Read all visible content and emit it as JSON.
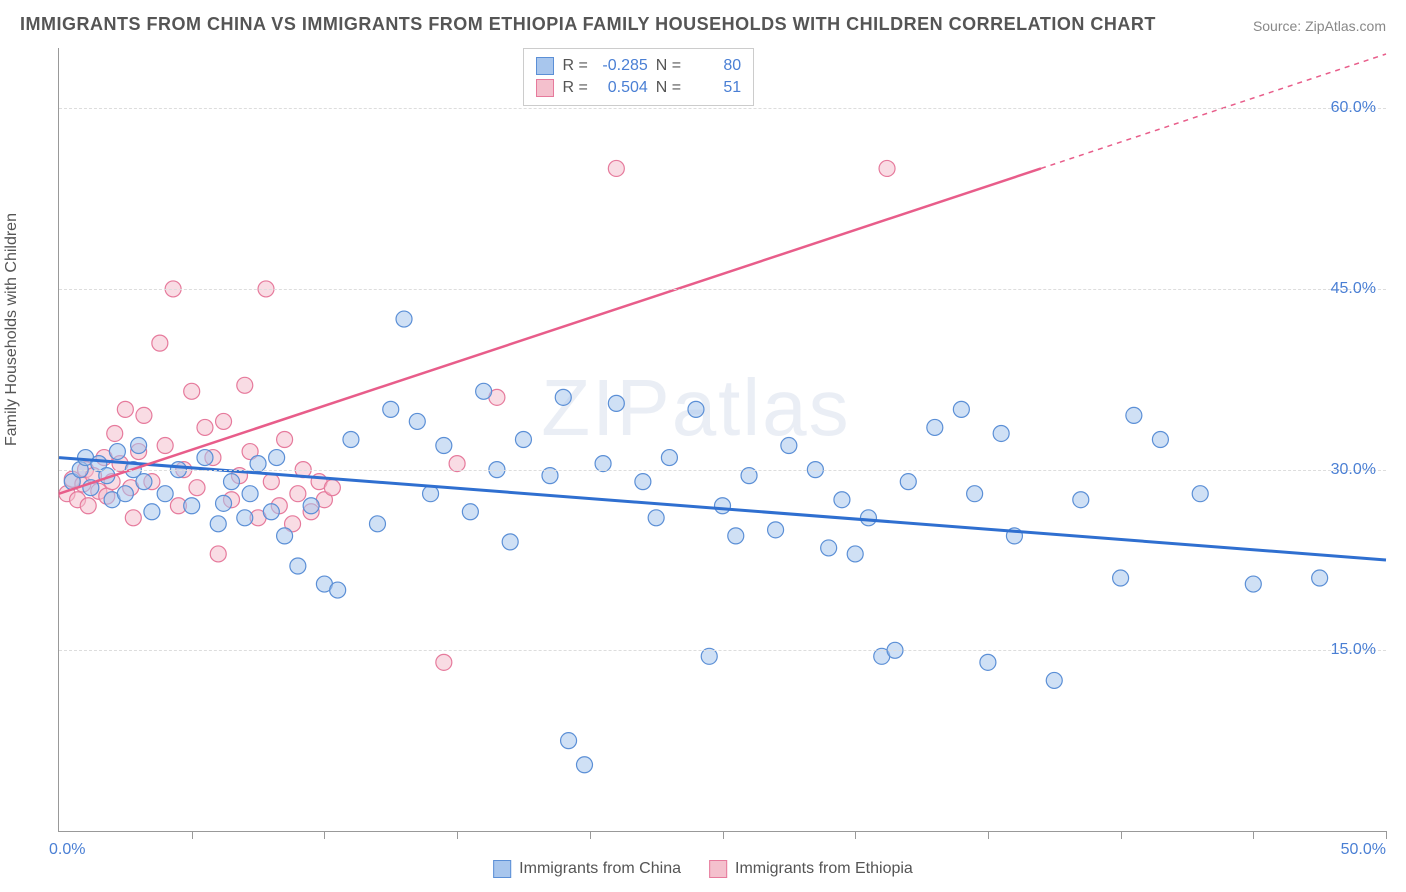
{
  "title": "IMMIGRANTS FROM CHINA VS IMMIGRANTS FROM ETHIOPIA FAMILY HOUSEHOLDS WITH CHILDREN CORRELATION CHART",
  "source": "Source: ZipAtlas.com",
  "ylabel": "Family Households with Children",
  "watermark": "ZIPatlas",
  "chart": {
    "type": "scatter",
    "xlim": [
      0,
      50
    ],
    "ylim": [
      0,
      65
    ],
    "xorigin_label": "0.0%",
    "xmax_label": "50.0%",
    "xtick_positions": [
      5,
      10,
      15,
      20,
      25,
      30,
      35,
      40,
      45,
      50
    ],
    "yticks": [
      {
        "v": 15,
        "label": "15.0%"
      },
      {
        "v": 30,
        "label": "30.0%"
      },
      {
        "v": 45,
        "label": "45.0%"
      },
      {
        "v": 60,
        "label": "60.0%"
      }
    ],
    "grid_color": "#dddddd",
    "background_color": "#ffffff",
    "marker_radius": 8,
    "marker_opacity": 0.55,
    "series": [
      {
        "name": "Immigrants from China",
        "color_fill": "#a8c6ed",
        "color_stroke": "#5b8fd6",
        "R": "-0.285",
        "N": "80",
        "trend": {
          "x1": 0,
          "y1": 31,
          "x2": 50,
          "y2": 22.5,
          "dash": "none",
          "color": "#2f6fd0",
          "width": 3
        },
        "points": [
          [
            0.5,
            29
          ],
          [
            0.8,
            30
          ],
          [
            1.0,
            31
          ],
          [
            1.2,
            28.5
          ],
          [
            1.5,
            30.5
          ],
          [
            1.8,
            29.5
          ],
          [
            2.0,
            27.5
          ],
          [
            2.2,
            31.5
          ],
          [
            2.5,
            28
          ],
          [
            2.8,
            30
          ],
          [
            3.0,
            32
          ],
          [
            3.2,
            29
          ],
          [
            3.5,
            26.5
          ],
          [
            4.0,
            28
          ],
          [
            4.5,
            30
          ],
          [
            5.0,
            27
          ],
          [
            5.5,
            31
          ],
          [
            6.0,
            25.5
          ],
          [
            6.2,
            27.2
          ],
          [
            6.5,
            29
          ],
          [
            7.0,
            26
          ],
          [
            7.2,
            28
          ],
          [
            7.5,
            30.5
          ],
          [
            8.0,
            26.5
          ],
          [
            8.2,
            31
          ],
          [
            8.5,
            24.5
          ],
          [
            9.0,
            22
          ],
          [
            9.5,
            27
          ],
          [
            10.0,
            20.5
          ],
          [
            10.5,
            20
          ],
          [
            11.0,
            32.5
          ],
          [
            12.0,
            25.5
          ],
          [
            12.5,
            35
          ],
          [
            13.0,
            42.5
          ],
          [
            13.5,
            34
          ],
          [
            14.0,
            28
          ],
          [
            14.5,
            32
          ],
          [
            15.5,
            26.5
          ],
          [
            16.0,
            36.5
          ],
          [
            16.5,
            30
          ],
          [
            17.0,
            24
          ],
          [
            17.5,
            32.5
          ],
          [
            18.5,
            29.5
          ],
          [
            19.0,
            36
          ],
          [
            19.2,
            7.5
          ],
          [
            19.8,
            5.5
          ],
          [
            20.5,
            30.5
          ],
          [
            21.0,
            35.5
          ],
          [
            22.0,
            29
          ],
          [
            22.5,
            26
          ],
          [
            23.0,
            31
          ],
          [
            24.0,
            35
          ],
          [
            24.5,
            14.5
          ],
          [
            25.0,
            27
          ],
          [
            25.5,
            24.5
          ],
          [
            26.0,
            29.5
          ],
          [
            27.0,
            25
          ],
          [
            27.5,
            32
          ],
          [
            28.5,
            30
          ],
          [
            29.0,
            23.5
          ],
          [
            29.5,
            27.5
          ],
          [
            30.0,
            23
          ],
          [
            30.5,
            26
          ],
          [
            31.0,
            14.5
          ],
          [
            31.5,
            15
          ],
          [
            32.0,
            29
          ],
          [
            33.0,
            33.5
          ],
          [
            34.0,
            35
          ],
          [
            34.5,
            28
          ],
          [
            35.0,
            14
          ],
          [
            35.5,
            33
          ],
          [
            36.0,
            24.5
          ],
          [
            37.5,
            12.5
          ],
          [
            38.5,
            27.5
          ],
          [
            40.0,
            21
          ],
          [
            40.5,
            34.5
          ],
          [
            41.5,
            32.5
          ],
          [
            43.0,
            28
          ],
          [
            45.0,
            20.5
          ],
          [
            47.5,
            21
          ]
        ]
      },
      {
        "name": "Immigrants from Ethiopia",
        "color_fill": "#f4c0cd",
        "color_stroke": "#e67a9c",
        "R": "0.504",
        "N": "51",
        "trend": {
          "x1": 0,
          "y1": 28,
          "x2": 37,
          "y2": 55,
          "dash": "none",
          "color": "#e85d8a",
          "width": 2.5
        },
        "trend_ext": {
          "x1": 37,
          "y1": 55,
          "x2": 50,
          "y2": 64.5,
          "dash": "5,5",
          "color": "#e85d8a",
          "width": 1.5
        },
        "points": [
          [
            0.3,
            28
          ],
          [
            0.5,
            29.2
          ],
          [
            0.7,
            27.5
          ],
          [
            0.9,
            28.8
          ],
          [
            1.0,
            30
          ],
          [
            1.1,
            27
          ],
          [
            1.3,
            29.5
          ],
          [
            1.5,
            28.2
          ],
          [
            1.7,
            31
          ],
          [
            1.8,
            27.8
          ],
          [
            2.0,
            29
          ],
          [
            2.1,
            33
          ],
          [
            2.3,
            30.5
          ],
          [
            2.5,
            35
          ],
          [
            2.7,
            28.5
          ],
          [
            2.8,
            26
          ],
          [
            3.0,
            31.5
          ],
          [
            3.2,
            34.5
          ],
          [
            3.5,
            29
          ],
          [
            3.8,
            40.5
          ],
          [
            4.0,
            32
          ],
          [
            4.3,
            45
          ],
          [
            4.5,
            27
          ],
          [
            4.7,
            30
          ],
          [
            5.0,
            36.5
          ],
          [
            5.2,
            28.5
          ],
          [
            5.5,
            33.5
          ],
          [
            5.8,
            31
          ],
          [
            6.0,
            23
          ],
          [
            6.2,
            34
          ],
          [
            6.5,
            27.5
          ],
          [
            6.8,
            29.5
          ],
          [
            7.0,
            37
          ],
          [
            7.2,
            31.5
          ],
          [
            7.5,
            26
          ],
          [
            7.8,
            45
          ],
          [
            8.0,
            29
          ],
          [
            8.3,
            27
          ],
          [
            8.5,
            32.5
          ],
          [
            8.8,
            25.5
          ],
          [
            9.0,
            28
          ],
          [
            9.2,
            30
          ],
          [
            9.5,
            26.5
          ],
          [
            9.8,
            29
          ],
          [
            10.0,
            27.5
          ],
          [
            10.3,
            28.5
          ],
          [
            14.5,
            14
          ],
          [
            15.0,
            30.5
          ],
          [
            16.5,
            36
          ],
          [
            21.0,
            55
          ],
          [
            31.2,
            55
          ]
        ]
      }
    ]
  },
  "stats_legend": {
    "labels": {
      "R": "R =",
      "N": "N ="
    }
  },
  "bottom_legend": [
    {
      "label": "Immigrants from China",
      "fill": "#a8c6ed",
      "stroke": "#5b8fd6"
    },
    {
      "label": "Immigrants from Ethiopia",
      "fill": "#f4c0cd",
      "stroke": "#e67a9c"
    }
  ]
}
